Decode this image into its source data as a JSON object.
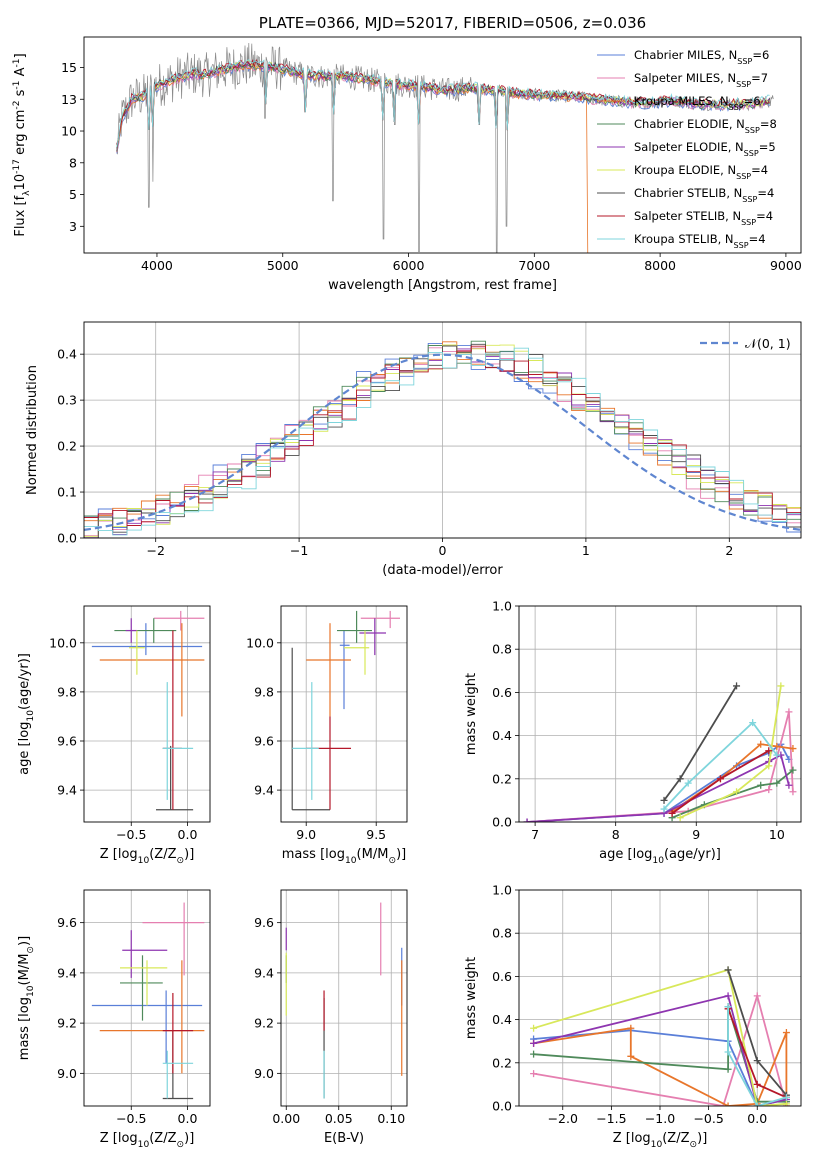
{
  "series": [
    {
      "name": "Chabrier MILES, N$_{SSP}$=6",
      "color": "#5a7fd8"
    },
    {
      "name": "Salpeter MILES, N$_{SSP}$=7",
      "color": "#e57fb0"
    },
    {
      "name": "Kroupa MILES, N$_{SSP}$=6",
      "color": "#e8762b"
    },
    {
      "name": "Chabrier ELODIE, N$_{SSP}$=8",
      "color": "#4f8a5b"
    },
    {
      "name": "Salpeter ELODIE, N$_{SSP}$=5",
      "color": "#8e35b0"
    },
    {
      "name": "Kroupa ELODIE, N$_{SSP}$=4",
      "color": "#d8e85a"
    },
    {
      "name": "Chabrier STELIB, N$_{SSP}$=4",
      "color": "#4d4d4d"
    },
    {
      "name": "Salpeter STELIB, N$_{SSP}$=4",
      "color": "#b5182a"
    },
    {
      "name": "Kroupa STELIB, N$_{SSP}$=4",
      "color": "#7fd5dc"
    }
  ],
  "chart_data": [
    {
      "id": "spectrum",
      "type": "line",
      "title": "PLATE=0366, MJD=52017, FIBERID=0506, z=0.036",
      "xlabel": "wavelength [Angstrom, rest frame]",
      "ylabel": "Flux [f$_\\lambda$10$^{-17}$ erg cm$^{-2}$ s$^{-1}$ A$^{-1}$]",
      "xlim": [
        3420,
        9120
      ],
      "ylim": [
        0.4,
        17.4
      ],
      "xticks": [
        4000,
        5000,
        6000,
        7000,
        8000,
        9000
      ],
      "yticks": [
        2.5,
        5.0,
        7.5,
        10.0,
        12.5,
        15.0
      ],
      "legend": "right",
      "data_curve": {
        "x": [
          3680,
          3720,
          3800,
          3900,
          4000,
          4100,
          4200,
          4300,
          4400,
          4500,
          4700,
          4900,
          5100,
          5300,
          5500,
          5700,
          5900,
          6100,
          6300,
          6500,
          6700,
          6900,
          7100,
          7300,
          7500,
          7700,
          7900,
          8100,
          8300,
          8500,
          8700,
          8900
        ],
        "y": [
          8.5,
          11.0,
          12.5,
          12.8,
          13.6,
          13.9,
          14.3,
          14.5,
          14.4,
          14.8,
          15.2,
          15.1,
          14.6,
          14.3,
          14.3,
          14.0,
          13.7,
          13.5,
          13.2,
          13.4,
          13.2,
          12.9,
          12.8,
          12.7,
          12.5,
          12.3,
          12.2,
          12.4,
          12.1,
          12.1,
          12.1,
          12.4
        ]
      },
      "notes": [
        "Kroupa MILES model ends near 7420 A"
      ]
    },
    {
      "id": "residuals",
      "type": "line",
      "xlabel": "(data-model)/error",
      "ylabel": "Normed distribution",
      "xlim": [
        -2.5,
        2.5
      ],
      "ylim": [
        0,
        0.47
      ],
      "xticks": [
        -2,
        -1,
        0,
        1,
        2
      ],
      "yticks": [
        0.0,
        0.1,
        0.2,
        0.3,
        0.4
      ],
      "legend": "top-right",
      "normal_label": "$\\mathcal{N}(0, 1)$",
      "grid": true
    },
    {
      "id": "age_vs_Z",
      "type": "scatter",
      "xlabel": "Z [log$_{10}$(Z/Z$_\\odot$)]",
      "ylabel": "age  [log$_{10}$(age/yr)]",
      "xlim": [
        -0.92,
        0.2
      ],
      "ylim": [
        9.27,
        10.15
      ],
      "xticks": [
        -0.5,
        0.0
      ],
      "yticks": [
        9.4,
        9.6,
        9.8,
        10.0
      ],
      "grid": true,
      "points": [
        {
          "s": 0,
          "x": -0.37,
          "xe": [
            -0.85,
            0.13
          ],
          "y": 9.985,
          "ye": [
            9.95,
            10.08
          ]
        },
        {
          "s": 1,
          "x": -0.06,
          "xe": [
            -0.3,
            0.15
          ],
          "y": 10.1,
          "ye": [
            10.05,
            10.13
          ]
        },
        {
          "s": 2,
          "x": -0.05,
          "xe": [
            -0.78,
            0.15
          ],
          "y": 9.93,
          "ye": [
            9.7,
            10.08
          ]
        },
        {
          "s": 3,
          "x": -0.3,
          "xe": [
            -0.65,
            -0.1
          ],
          "y": 10.05,
          "ye": [
            10.0,
            10.1
          ]
        },
        {
          "s": 4,
          "x": -0.5,
          "xe": [
            -0.55,
            -0.45
          ],
          "y": 10.05,
          "ye": [
            10.0,
            10.1
          ]
        },
        {
          "s": 5,
          "x": -0.45,
          "xe": [
            -0.52,
            -0.38
          ],
          "y": 9.98,
          "ye": [
            9.87,
            10.05
          ]
        },
        {
          "s": 6,
          "x": -0.15,
          "xe": [
            -0.28,
            0.05
          ],
          "y": 9.32,
          "ye": [
            9.32,
            9.58
          ]
        },
        {
          "s": 7,
          "x": -0.13,
          "xe": [
            -0.22,
            -0.05
          ],
          "y": 9.57,
          "ye": [
            9.32,
            10.05
          ]
        },
        {
          "s": 8,
          "x": -0.18,
          "xe": [
            -0.22,
            0.05
          ],
          "y": 9.57,
          "ye": [
            9.36,
            9.84
          ]
        }
      ]
    },
    {
      "id": "age_vs_mass",
      "type": "scatter",
      "xlabel": "mass [log$_{10}$(M/M$_\\odot$)]",
      "ylabel": "",
      "xlim": [
        8.82,
        9.72
      ],
      "ylim": [
        9.27,
        10.15
      ],
      "xticks": [
        9.0,
        9.5
      ],
      "yticks": [
        9.4,
        9.6,
        9.8,
        10.0
      ],
      "grid": true,
      "points": [
        {
          "s": 0,
          "x": 9.27,
          "xe": [
            9.24,
            9.31
          ],
          "y": 9.99,
          "ye": [
            9.73,
            10.05
          ]
        },
        {
          "s": 1,
          "x": 9.6,
          "xe": [
            9.39,
            9.67
          ],
          "y": 10.1,
          "ye": [
            10.06,
            10.13
          ]
        },
        {
          "s": 2,
          "x": 9.17,
          "xe": [
            9.0,
            9.32
          ],
          "y": 9.93,
          "ye": [
            9.7,
            10.08
          ]
        },
        {
          "s": 3,
          "x": 9.36,
          "xe": [
            9.22,
            9.47
          ],
          "y": 10.05,
          "ye": [
            10.0,
            10.13
          ]
        },
        {
          "s": 4,
          "x": 9.49,
          "xe": [
            9.38,
            9.57
          ],
          "y": 10.04,
          "ye": [
            9.95,
            10.1
          ]
        },
        {
          "s": 5,
          "x": 9.42,
          "xe": [
            9.27,
            9.45
          ],
          "y": 9.98,
          "ye": [
            9.87,
            10.05
          ]
        },
        {
          "s": 6,
          "x": 8.9,
          "xe": [
            8.9,
            9.17
          ],
          "y": 9.32,
          "ye": [
            9.32,
            9.98
          ]
        },
        {
          "s": 7,
          "x": 9.17,
          "xe": [
            9.0,
            9.32
          ],
          "y": 9.57,
          "ye": [
            9.32,
            9.7
          ]
        },
        {
          "s": 8,
          "x": 9.04,
          "xe": [
            8.9,
            9.09
          ],
          "y": 9.57,
          "ye": [
            9.36,
            9.84
          ]
        }
      ]
    },
    {
      "id": "massweight_vs_age",
      "type": "line",
      "xlabel": "age  [log$_{10}$(age/yr)]",
      "ylabel": "mass weight",
      "xlim": [
        6.8,
        10.3
      ],
      "ylim": [
        0,
        1.0
      ],
      "xticks": [
        7,
        8,
        9,
        10
      ],
      "yticks": [
        0.0,
        0.2,
        0.4,
        0.6,
        0.8,
        1.0
      ],
      "grid": true,
      "lines": [
        {
          "s": 0,
          "x": [
            6.9,
            8.6,
            9.5,
            9.9,
            10.05,
            10.15
          ],
          "y": [
            0.0,
            0.04,
            0.26,
            0.32,
            0.36,
            0.29
          ]
        },
        {
          "s": 1,
          "x": [
            6.9,
            8.9,
            9.9,
            10.15,
            10.2
          ],
          "y": [
            0.0,
            0.05,
            0.15,
            0.51,
            0.14
          ]
        },
        {
          "s": 2,
          "x": [
            8.7,
            9.3,
            9.8,
            10.0,
            10.2
          ],
          "y": [
            0.05,
            0.2,
            0.36,
            0.35,
            0.34
          ]
        },
        {
          "s": 3,
          "x": [
            8.7,
            9.1,
            9.8,
            10.0,
            10.2
          ],
          "y": [
            0.02,
            0.08,
            0.17,
            0.18,
            0.24
          ]
        },
        {
          "s": 4,
          "x": [
            6.9,
            8.6,
            9.9,
            10.05,
            10.15
          ],
          "y": [
            0.0,
            0.04,
            0.28,
            0.31,
            0.17
          ]
        },
        {
          "s": 5,
          "x": [
            8.8,
            9.5,
            9.9,
            10.05
          ],
          "y": [
            0.02,
            0.14,
            0.26,
            0.63
          ]
        },
        {
          "s": 6,
          "x": [
            8.6,
            8.8,
            9.5
          ],
          "y": [
            0.1,
            0.2,
            0.63
          ]
        },
        {
          "s": 7,
          "x": [
            8.7,
            9.3,
            9.9
          ],
          "y": [
            0.04,
            0.2,
            0.33
          ]
        },
        {
          "s": 8,
          "x": [
            8.6,
            8.9,
            9.7,
            10.0
          ],
          "y": [
            0.06,
            0.18,
            0.46,
            0.31
          ]
        }
      ]
    },
    {
      "id": "mass_vs_Z",
      "type": "scatter",
      "xlabel": "Z [log$_{10}$(Z/Z$_\\odot$)]",
      "ylabel": "mass [log$_{10}$(M/M$_\\odot$)]",
      "xlim": [
        -0.92,
        0.2
      ],
      "ylim": [
        8.87,
        9.73
      ],
      "xticks": [
        -0.5,
        0.0
      ],
      "yticks": [
        9.0,
        9.2,
        9.4,
        9.6
      ],
      "grid": true,
      "points": [
        {
          "s": 0,
          "x": -0.19,
          "xe": [
            -0.85,
            0.13
          ],
          "y": 9.27,
          "ye": [
            9.04,
            9.33
          ]
        },
        {
          "s": 1,
          "x": -0.03,
          "xe": [
            -0.4,
            0.15
          ],
          "y": 9.6,
          "ye": [
            9.39,
            9.68
          ]
        },
        {
          "s": 2,
          "x": -0.05,
          "xe": [
            -0.78,
            0.15
          ],
          "y": 9.17,
          "ye": [
            9.0,
            9.45
          ]
        },
        {
          "s": 3,
          "x": -0.4,
          "xe": [
            -0.6,
            -0.22
          ],
          "y": 9.36,
          "ye": [
            9.21,
            9.47
          ]
        },
        {
          "s": 4,
          "x": -0.5,
          "xe": [
            -0.58,
            -0.18
          ],
          "y": 9.49,
          "ye": [
            9.38,
            9.57
          ]
        },
        {
          "s": 5,
          "x": -0.36,
          "xe": [
            -0.6,
            -0.18
          ],
          "y": 9.42,
          "ye": [
            9.27,
            9.45
          ]
        },
        {
          "s": 6,
          "x": -0.13,
          "xe": [
            -0.22,
            0.05
          ],
          "y": 8.9,
          "ye": [
            8.9,
            9.17
          ]
        },
        {
          "s": 7,
          "x": -0.13,
          "xe": [
            -0.22,
            0.05
          ],
          "y": 9.17,
          "ye": [
            9.0,
            9.32
          ]
        },
        {
          "s": 8,
          "x": -0.18,
          "xe": [
            -0.22,
            0.05
          ],
          "y": 9.04,
          "ye": [
            8.9,
            9.09
          ]
        }
      ]
    },
    {
      "id": "mass_vs_EBV",
      "type": "scatter",
      "xlabel": "E(B-V)",
      "ylabel": "",
      "xlim": [
        -0.005,
        0.115
      ],
      "ylim": [
        8.87,
        9.73
      ],
      "xticks": [
        0.0,
        0.05,
        0.1
      ],
      "yticks": [
        9.0,
        9.2,
        9.4,
        9.6
      ],
      "grid": true,
      "points": [
        {
          "s": 0,
          "x": 0.11,
          "ye": [
            9.27,
            9.5
          ]
        },
        {
          "s": 1,
          "x": 0.09,
          "ye": [
            9.39,
            9.68
          ]
        },
        {
          "s": 2,
          "x": 0.11,
          "ye": [
            8.99,
            9.45
          ]
        },
        {
          "s": 3,
          "x": 0.0,
          "ye": [
            9.36,
            9.47
          ]
        },
        {
          "s": 4,
          "x": 0.0,
          "ye": [
            9.49,
            9.58
          ]
        },
        {
          "s": 5,
          "x": 0.0,
          "ye": [
            9.23,
            9.48
          ]
        },
        {
          "s": 6,
          "x": 0.036,
          "ye": [
            8.9,
            9.3
          ]
        },
        {
          "s": 7,
          "x": 0.036,
          "ye": [
            9.17,
            9.33
          ]
        },
        {
          "s": 8,
          "x": 0.036,
          "ye": [
            8.9,
            9.09
          ]
        }
      ]
    },
    {
      "id": "massweight_vs_Z",
      "type": "line",
      "xlabel": "Z [log$_{10}$(Z/Z$_\\odot$)]",
      "ylabel": "mass weight",
      "xlim": [
        -2.45,
        0.45
      ],
      "ylim": [
        0,
        1.0
      ],
      "xticks": [
        -2.0,
        -1.5,
        -1.0,
        -0.5,
        0.0
      ],
      "yticks": [
        0.0,
        0.2,
        0.4,
        0.6,
        0.8,
        1.0
      ],
      "grid": true,
      "lines": [
        {
          "s": 0,
          "x": [
            -2.3,
            -1.3,
            -0.3,
            0.0,
            0.3
          ],
          "y": [
            0.31,
            0.35,
            0.3,
            0.0,
            0.03
          ]
        },
        {
          "s": 1,
          "x": [
            -2.3,
            -0.35,
            0.0,
            0.3,
            0.3
          ],
          "y": [
            0.15,
            0.0,
            0.51,
            0.0,
            0.02
          ]
        },
        {
          "s": 2,
          "x": [
            -2.3,
            -1.3,
            -1.3,
            -0.3,
            0.0,
            0.3,
            0.3
          ],
          "y": [
            0.29,
            0.36,
            0.23,
            0.0,
            0.01,
            0.34,
            0.0
          ]
        },
        {
          "s": 3,
          "x": [
            -2.3,
            -0.3,
            -0.3,
            0.0,
            0.3
          ],
          "y": [
            0.24,
            0.17,
            0.46,
            0.02,
            0.02
          ]
        },
        {
          "s": 4,
          "x": [
            -2.3,
            -0.3,
            0.0,
            0.3
          ],
          "y": [
            0.29,
            0.51,
            0.0,
            0.03
          ]
        },
        {
          "s": 5,
          "x": [
            -2.3,
            -0.3,
            0.0,
            0.3
          ],
          "y": [
            0.36,
            0.63,
            0.0,
            0.01
          ]
        },
        {
          "s": 6,
          "x": [
            -0.3,
            0.0,
            0.3
          ],
          "y": [
            0.63,
            0.21,
            0.05
          ]
        },
        {
          "s": 7,
          "x": [
            -0.3,
            0.0,
            0.3
          ],
          "y": [
            0.45,
            0.1,
            0.04
          ]
        },
        {
          "s": 8,
          "x": [
            -0.3,
            -0.3,
            0.0,
            0.3
          ],
          "y": [
            0.46,
            0.25,
            0.0,
            0.04
          ]
        }
      ]
    }
  ]
}
